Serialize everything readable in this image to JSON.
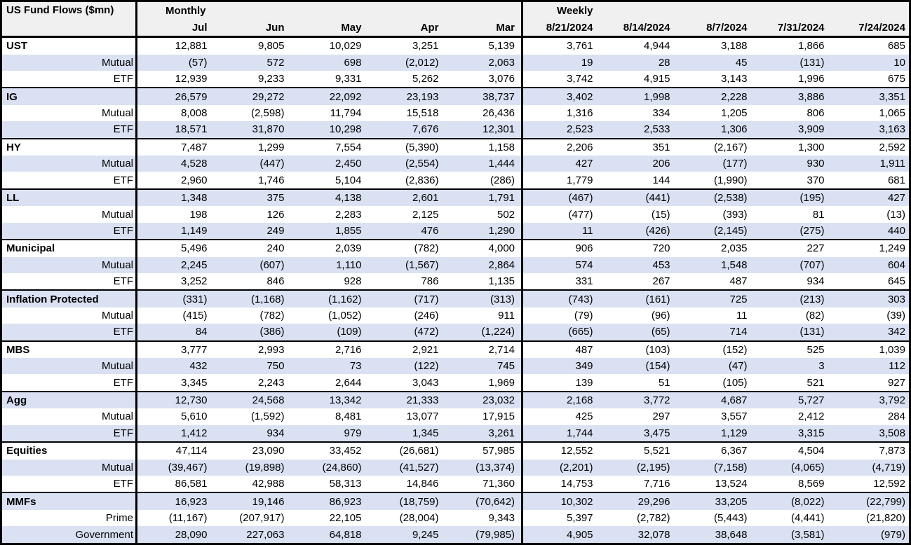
{
  "table": {
    "title": "US Fund Flows ($mn)",
    "sections": [
      {
        "label": "Monthly",
        "columns": [
          "Jul",
          "Jun",
          "May",
          "Apr",
          "Mar"
        ]
      },
      {
        "label": "Weekly",
        "columns": [
          "8/21/2024",
          "8/14/2024",
          "8/7/2024",
          "7/31/2024",
          "7/24/2024"
        ]
      }
    ],
    "groups": [
      {
        "name": "UST",
        "rows": [
          {
            "label": "UST",
            "monthly": [
              "12,881",
              "9,805",
              "10,029",
              "3,251",
              "5,139"
            ],
            "weekly": [
              "3,761",
              "4,944",
              "3,188",
              "1,866",
              "685"
            ]
          },
          {
            "label": "Mutual",
            "monthly": [
              "(57)",
              "572",
              "698",
              "(2,012)",
              "2,063"
            ],
            "weekly": [
              "19",
              "28",
              "45",
              "(131)",
              "10"
            ]
          },
          {
            "label": "ETF",
            "monthly": [
              "12,939",
              "9,233",
              "9,331",
              "5,262",
              "3,076"
            ],
            "weekly": [
              "3,742",
              "4,915",
              "3,143",
              "1,996",
              "675"
            ]
          }
        ]
      },
      {
        "name": "IG",
        "rows": [
          {
            "label": "IG",
            "monthly": [
              "26,579",
              "29,272",
              "22,092",
              "23,193",
              "38,737"
            ],
            "weekly": [
              "3,402",
              "1,998",
              "2,228",
              "3,886",
              "3,351"
            ]
          },
          {
            "label": "Mutual",
            "monthly": [
              "8,008",
              "(2,598)",
              "11,794",
              "15,518",
              "26,436"
            ],
            "weekly": [
              "1,316",
              "334",
              "1,205",
              "806",
              "1,065"
            ]
          },
          {
            "label": "ETF",
            "monthly": [
              "18,571",
              "31,870",
              "10,298",
              "7,676",
              "12,301"
            ],
            "weekly": [
              "2,523",
              "2,533",
              "1,306",
              "3,909",
              "3,163"
            ]
          }
        ]
      },
      {
        "name": "HY",
        "rows": [
          {
            "label": "HY",
            "monthly": [
              "7,487",
              "1,299",
              "7,554",
              "(5,390)",
              "1,158"
            ],
            "weekly": [
              "2,206",
              "351",
              "(2,167)",
              "1,300",
              "2,592"
            ]
          },
          {
            "label": "Mutual",
            "monthly": [
              "4,528",
              "(447)",
              "2,450",
              "(2,554)",
              "1,444"
            ],
            "weekly": [
              "427",
              "206",
              "(177)",
              "930",
              "1,911"
            ]
          },
          {
            "label": "ETF",
            "monthly": [
              "2,960",
              "1,746",
              "5,104",
              "(2,836)",
              "(286)"
            ],
            "weekly": [
              "1,779",
              "144",
              "(1,990)",
              "370",
              "681"
            ]
          }
        ]
      },
      {
        "name": "LL",
        "rows": [
          {
            "label": "LL",
            "monthly": [
              "1,348",
              "375",
              "4,138",
              "2,601",
              "1,791"
            ],
            "weekly": [
              "(467)",
              "(441)",
              "(2,538)",
              "(195)",
              "427"
            ]
          },
          {
            "label": "Mutual",
            "monthly": [
              "198",
              "126",
              "2,283",
              "2,125",
              "502"
            ],
            "weekly": [
              "(477)",
              "(15)",
              "(393)",
              "81",
              "(13)"
            ]
          },
          {
            "label": "ETF",
            "monthly": [
              "1,149",
              "249",
              "1,855",
              "476",
              "1,290"
            ],
            "weekly": [
              "11",
              "(426)",
              "(2,145)",
              "(275)",
              "440"
            ]
          }
        ]
      },
      {
        "name": "Municipal",
        "rows": [
          {
            "label": "Municipal",
            "monthly": [
              "5,496",
              "240",
              "2,039",
              "(782)",
              "4,000"
            ],
            "weekly": [
              "906",
              "720",
              "2,035",
              "227",
              "1,249"
            ]
          },
          {
            "label": "Mutual",
            "monthly": [
              "2,245",
              "(607)",
              "1,110",
              "(1,567)",
              "2,864"
            ],
            "weekly": [
              "574",
              "453",
              "1,548",
              "(707)",
              "604"
            ]
          },
          {
            "label": "ETF",
            "monthly": [
              "3,252",
              "846",
              "928",
              "786",
              "1,135"
            ],
            "weekly": [
              "331",
              "267",
              "487",
              "934",
              "645"
            ]
          }
        ]
      },
      {
        "name": "Inflation Protected",
        "rows": [
          {
            "label": "Inflation Protected",
            "monthly": [
              "(331)",
              "(1,168)",
              "(1,162)",
              "(717)",
              "(313)"
            ],
            "weekly": [
              "(743)",
              "(161)",
              "725",
              "(213)",
              "303"
            ]
          },
          {
            "label": "Mutual",
            "monthly": [
              "(415)",
              "(782)",
              "(1,052)",
              "(246)",
              "911"
            ],
            "weekly": [
              "(79)",
              "(96)",
              "11",
              "(82)",
              "(39)"
            ]
          },
          {
            "label": "ETF",
            "monthly": [
              "84",
              "(386)",
              "(109)",
              "(472)",
              "(1,224)"
            ],
            "weekly": [
              "(665)",
              "(65)",
              "714",
              "(131)",
              "342"
            ]
          }
        ]
      },
      {
        "name": "MBS",
        "rows": [
          {
            "label": "MBS",
            "monthly": [
              "3,777",
              "2,993",
              "2,716",
              "2,921",
              "2,714"
            ],
            "weekly": [
              "487",
              "(103)",
              "(152)",
              "525",
              "1,039"
            ]
          },
          {
            "label": "Mutual",
            "monthly": [
              "432",
              "750",
              "73",
              "(122)",
              "745"
            ],
            "weekly": [
              "349",
              "(154)",
              "(47)",
              "3",
              "112"
            ]
          },
          {
            "label": "ETF",
            "monthly": [
              "3,345",
              "2,243",
              "2,644",
              "3,043",
              "1,969"
            ],
            "weekly": [
              "139",
              "51",
              "(105)",
              "521",
              "927"
            ]
          }
        ]
      },
      {
        "name": "Agg",
        "rows": [
          {
            "label": "Agg",
            "monthly": [
              "12,730",
              "24,568",
              "13,342",
              "21,333",
              "23,032"
            ],
            "weekly": [
              "2,168",
              "3,772",
              "4,687",
              "5,727",
              "3,792"
            ]
          },
          {
            "label": "Mutual",
            "monthly": [
              "5,610",
              "(1,592)",
              "8,481",
              "13,077",
              "17,915"
            ],
            "weekly": [
              "425",
              "297",
              "3,557",
              "2,412",
              "284"
            ]
          },
          {
            "label": "ETF",
            "monthly": [
              "1,412",
              "934",
              "979",
              "1,345",
              "3,261"
            ],
            "weekly": [
              "1,744",
              "3,475",
              "1,129",
              "3,315",
              "3,508"
            ]
          }
        ]
      },
      {
        "name": "Equities",
        "rows": [
          {
            "label": "Equities",
            "monthly": [
              "47,114",
              "23,090",
              "33,452",
              "(26,681)",
              "57,985"
            ],
            "weekly": [
              "12,552",
              "5,521",
              "6,367",
              "4,504",
              "7,873"
            ]
          },
          {
            "label": "Mutual",
            "monthly": [
              "(39,467)",
              "(19,898)",
              "(24,860)",
              "(41,527)",
              "(13,374)"
            ],
            "weekly": [
              "(2,201)",
              "(2,195)",
              "(7,158)",
              "(4,065)",
              "(4,719)"
            ]
          },
          {
            "label": "ETF",
            "monthly": [
              "86,581",
              "42,988",
              "58,313",
              "14,846",
              "71,360"
            ],
            "weekly": [
              "14,753",
              "7,716",
              "13,524",
              "8,569",
              "12,592"
            ]
          }
        ]
      },
      {
        "name": "MMFs",
        "rows": [
          {
            "label": "MMFs",
            "monthly": [
              "16,923",
              "19,146",
              "86,923",
              "(18,759)",
              "(70,642)"
            ],
            "weekly": [
              "10,302",
              "29,296",
              "33,205",
              "(8,022)",
              "(22,799)"
            ]
          },
          {
            "label": "Prime",
            "monthly": [
              "(11,167)",
              "(207,917)",
              "22,105",
              "(28,004)",
              "9,343"
            ],
            "weekly": [
              "5,397",
              "(2,782)",
              "(5,443)",
              "(4,441)",
              "(21,820)"
            ]
          },
          {
            "label": "Government",
            "monthly": [
              "28,090",
              "227,063",
              "64,818",
              "9,245",
              "(79,985)"
            ],
            "weekly": [
              "4,905",
              "32,078",
              "38,648",
              "(3,581)",
              "(979)"
            ]
          }
        ]
      }
    ]
  },
  "colors": {
    "stripe": "#d9e1f2",
    "header_bg": "#f0f0f0",
    "border": "#000000",
    "text": "#000000",
    "background": "#ffffff"
  }
}
